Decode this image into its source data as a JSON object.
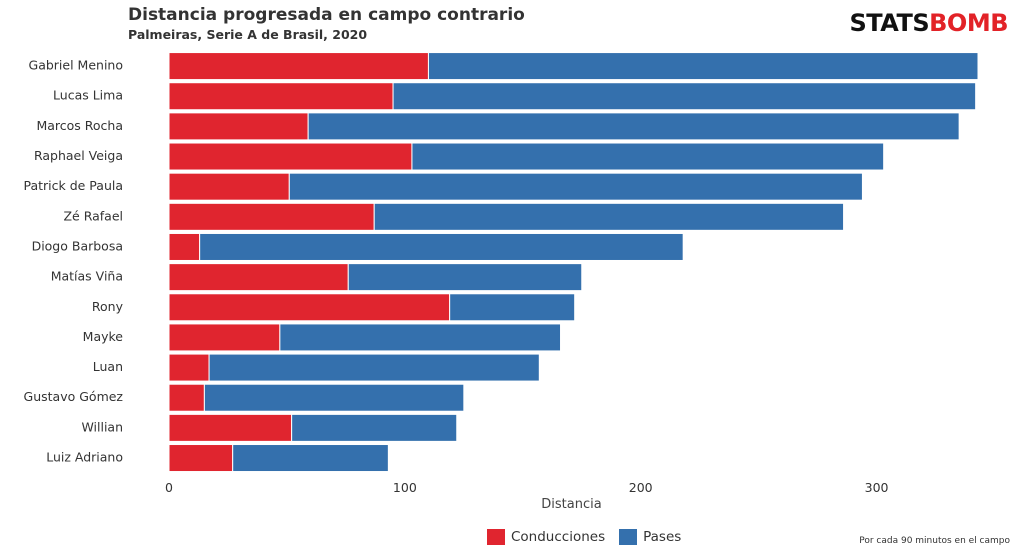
{
  "header": {
    "title": "Distancia progresada en campo contrario",
    "subtitle": "Palmeiras, Serie A de Brasil, 2020"
  },
  "logo": {
    "part_a": "STATS",
    "part_b": "BOMB"
  },
  "caption": "Por cada 90 minutos en el campo",
  "colors": {
    "conducciones": "#e0252f",
    "pases": "#3470ad"
  },
  "chart_data": {
    "type": "bar",
    "orientation": "horizontal",
    "stacked": true,
    "categories": [
      "Gabriel Menino",
      "Lucas Lima",
      "Marcos Rocha",
      "Raphael Veiga",
      "Patrick de Paula",
      "Zé Rafael",
      "Diogo Barbosa",
      "Matías Viña",
      "Rony",
      "Mayke",
      "Luan",
      "Gustavo Gómez",
      "Willian",
      "Luiz Adriano"
    ],
    "series": [
      {
        "name": "Conducciones",
        "values": [
          110,
          95,
          59,
          103,
          51,
          87,
          13,
          76,
          119,
          47,
          17,
          15,
          52,
          27
        ]
      },
      {
        "name": "Pases",
        "values": [
          233,
          247,
          276,
          200,
          243,
          199,
          205,
          99,
          53,
          119,
          140,
          110,
          70,
          66
        ]
      }
    ],
    "xlabel": "Distancia",
    "ylabel": "",
    "xlim": [
      0,
      343
    ],
    "xticks": [
      0,
      100,
      200,
      300
    ],
    "grid": false,
    "legend_position": "bottom"
  }
}
